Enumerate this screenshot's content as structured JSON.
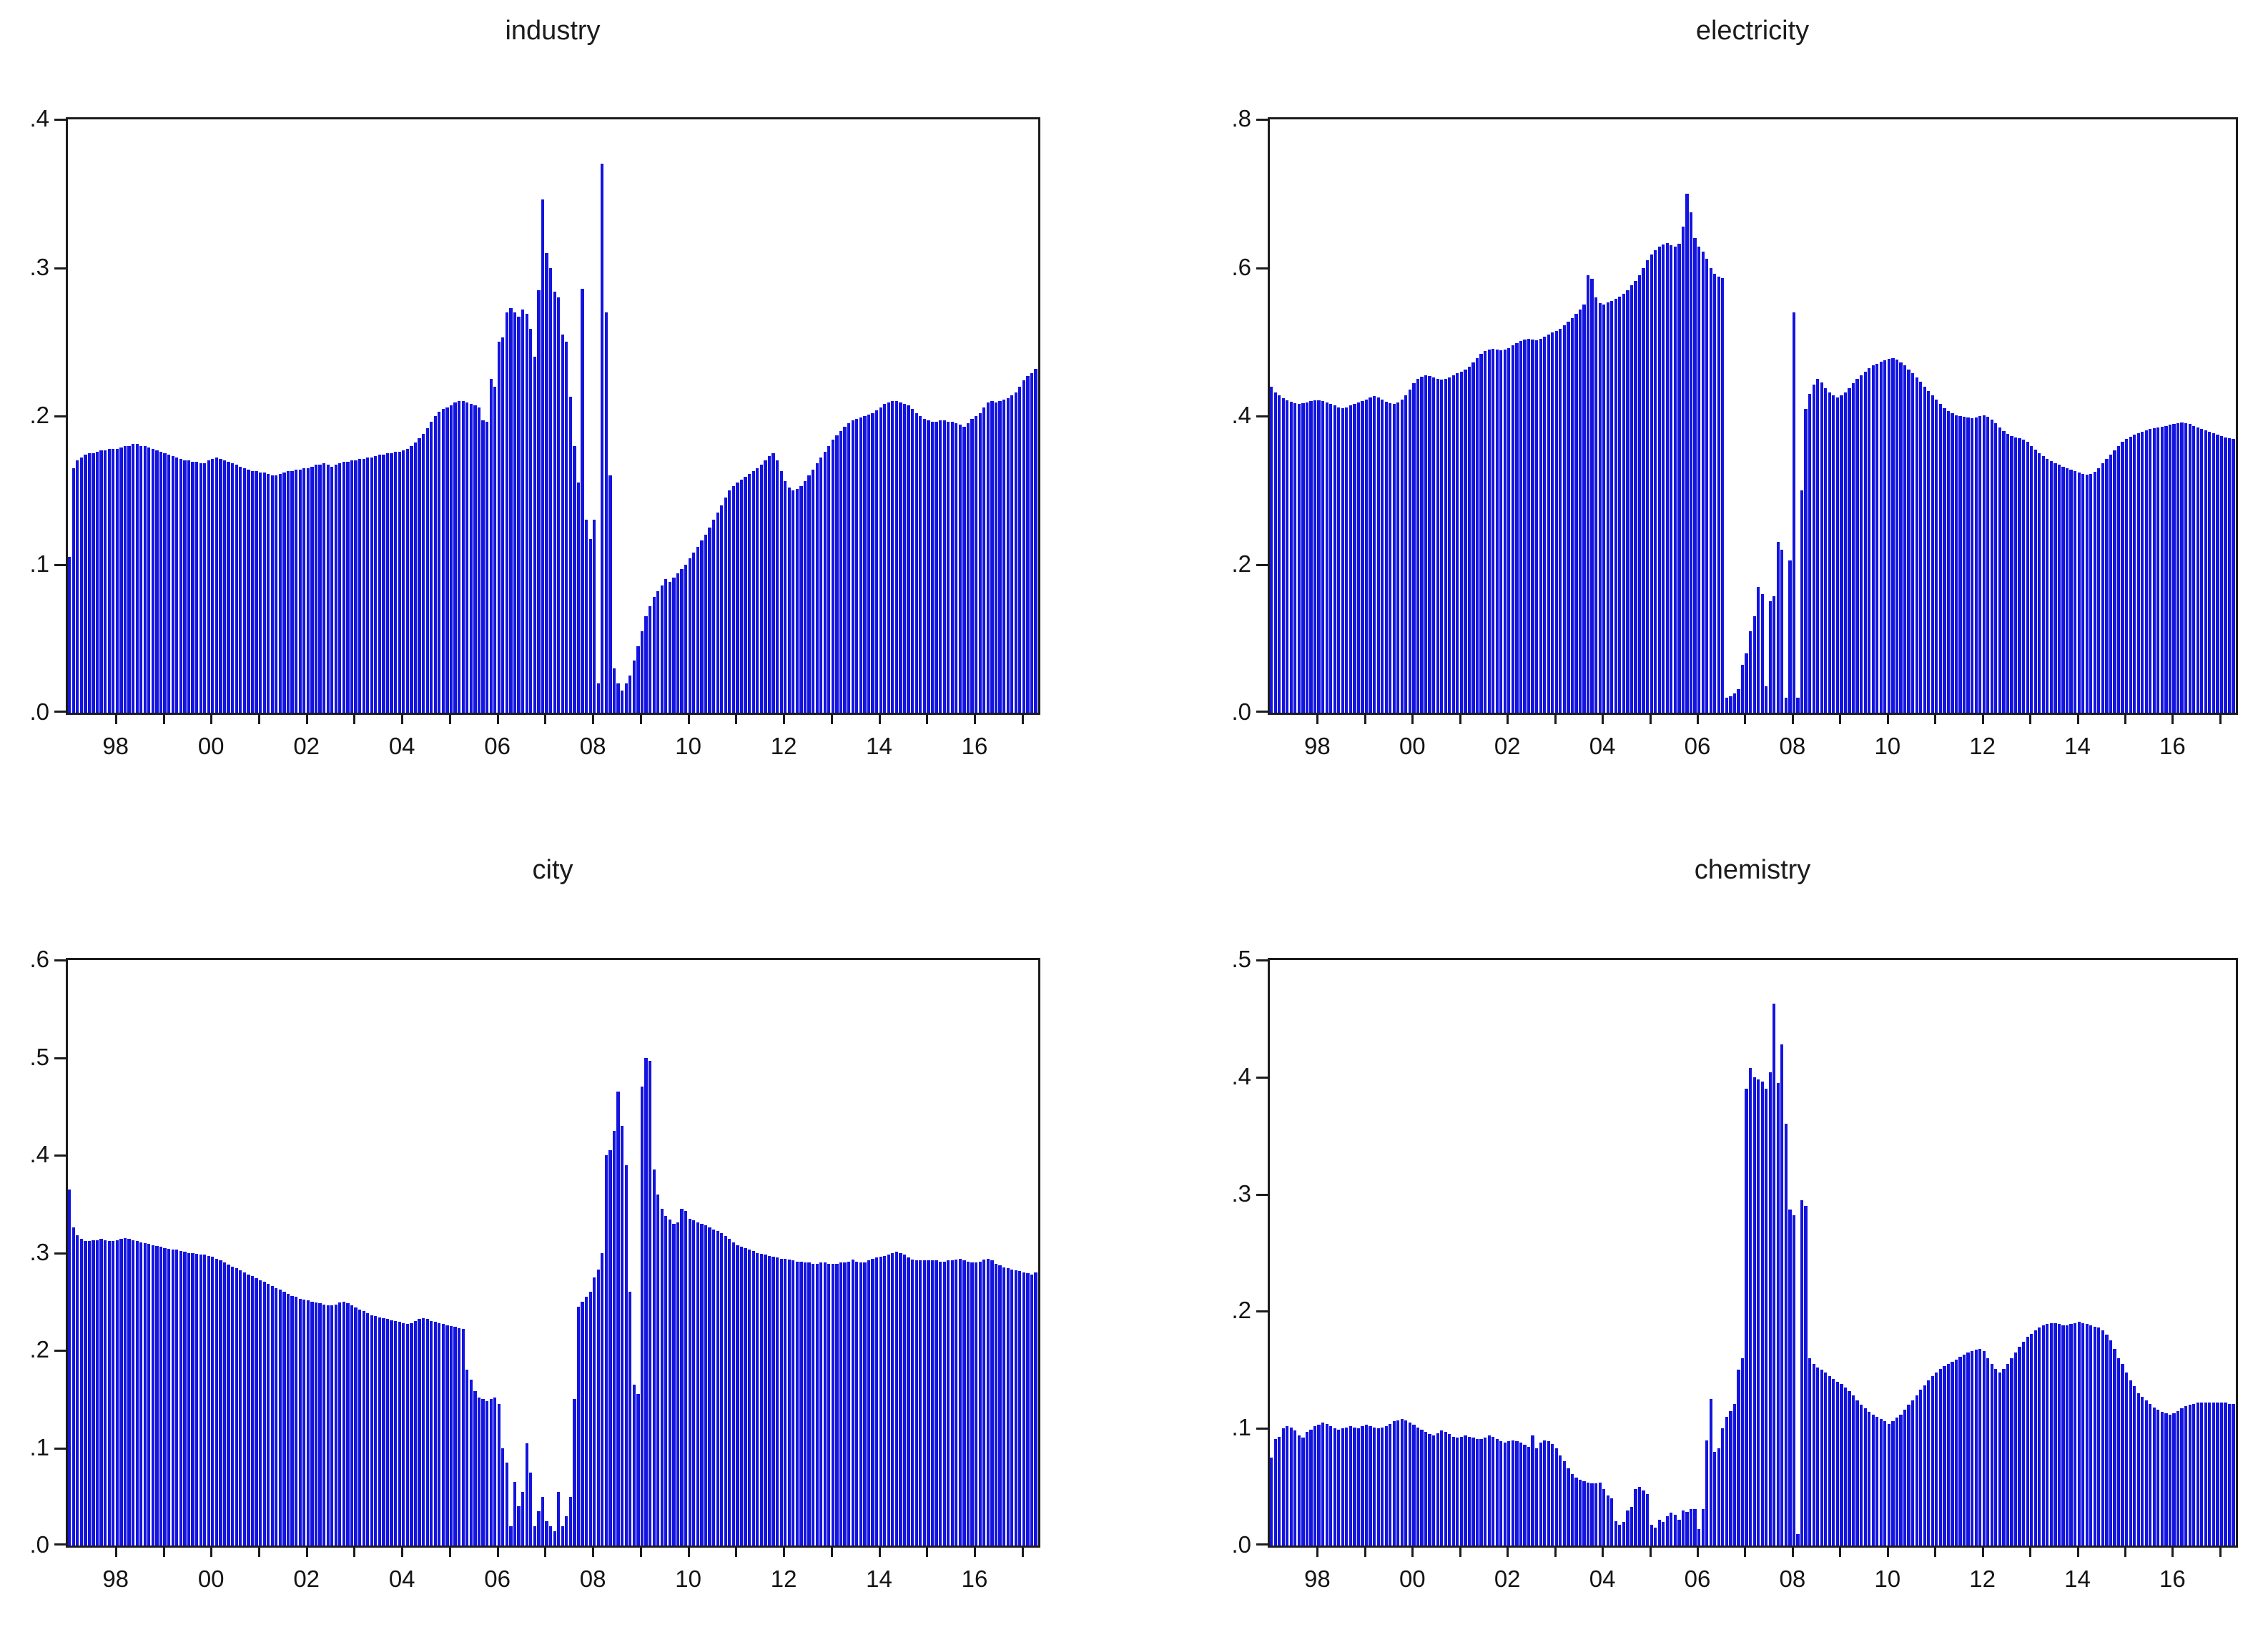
{
  "figure": {
    "background": "#ffffff",
    "bar_color": "#1414e0",
    "axis_color": "#1c1c1c",
    "label_color": "#141414"
  },
  "chart_data": [
    {
      "type": "bar",
      "title": "industry",
      "position": "top-left",
      "frequency": "monthly",
      "x_start": "1997M01",
      "x_end": "2017M04",
      "ylim": [
        0.0,
        0.4
      ],
      "grid": false,
      "y_tick_values": [
        0.4,
        0.3,
        0.2,
        0.1,
        0.0
      ],
      "y_tick_labels": [
        ".4",
        ".3",
        ".2",
        ".1",
        ".0"
      ],
      "x_label_years": [
        1998,
        2000,
        2002,
        2004,
        2006,
        2008,
        2010,
        2012,
        2014,
        2016
      ],
      "x_labels": [
        "98",
        "00",
        "02",
        "04",
        "06",
        "08",
        "10",
        "12",
        "14",
        "16"
      ],
      "values": [
        0.105,
        0.165,
        0.17,
        0.172,
        0.174,
        0.175,
        0.175,
        0.176,
        0.177,
        0.177,
        0.178,
        0.178,
        0.178,
        0.179,
        0.18,
        0.18,
        0.181,
        0.181,
        0.18,
        0.18,
        0.179,
        0.178,
        0.177,
        0.176,
        0.175,
        0.174,
        0.173,
        0.172,
        0.171,
        0.17,
        0.17,
        0.169,
        0.169,
        0.168,
        0.168,
        0.17,
        0.171,
        0.172,
        0.171,
        0.17,
        0.169,
        0.168,
        0.167,
        0.166,
        0.165,
        0.164,
        0.163,
        0.163,
        0.162,
        0.162,
        0.161,
        0.16,
        0.16,
        0.161,
        0.162,
        0.163,
        0.163,
        0.164,
        0.164,
        0.165,
        0.165,
        0.166,
        0.167,
        0.167,
        0.168,
        0.167,
        0.166,
        0.167,
        0.168,
        0.169,
        0.169,
        0.17,
        0.17,
        0.171,
        0.171,
        0.172,
        0.172,
        0.173,
        0.174,
        0.174,
        0.175,
        0.175,
        0.176,
        0.176,
        0.177,
        0.178,
        0.18,
        0.182,
        0.185,
        0.188,
        0.192,
        0.196,
        0.2,
        0.203,
        0.205,
        0.206,
        0.207,
        0.209,
        0.21,
        0.21,
        0.209,
        0.208,
        0.207,
        0.206,
        0.197,
        0.196,
        0.225,
        0.22,
        0.25,
        0.253,
        0.27,
        0.273,
        0.27,
        0.267,
        0.272,
        0.269,
        0.259,
        0.24,
        0.285,
        0.346,
        0.31,
        0.3,
        0.284,
        0.28,
        0.255,
        0.25,
        0.213,
        0.18,
        0.155,
        0.286,
        0.13,
        0.117,
        0.13,
        0.02,
        0.37,
        0.27,
        0.16,
        0.03,
        0.02,
        0.015,
        0.02,
        0.025,
        0.035,
        0.045,
        0.055,
        0.065,
        0.072,
        0.078,
        0.082,
        0.086,
        0.09,
        0.088,
        0.091,
        0.094,
        0.097,
        0.1,
        0.104,
        0.108,
        0.112,
        0.116,
        0.12,
        0.125,
        0.13,
        0.135,
        0.14,
        0.145,
        0.15,
        0.153,
        0.155,
        0.157,
        0.159,
        0.161,
        0.163,
        0.165,
        0.167,
        0.17,
        0.173,
        0.175,
        0.17,
        0.163,
        0.156,
        0.152,
        0.15,
        0.151,
        0.153,
        0.156,
        0.16,
        0.164,
        0.168,
        0.172,
        0.176,
        0.18,
        0.184,
        0.187,
        0.19,
        0.193,
        0.195,
        0.197,
        0.198,
        0.199,
        0.2,
        0.201,
        0.202,
        0.204,
        0.206,
        0.208,
        0.209,
        0.21,
        0.21,
        0.209,
        0.208,
        0.207,
        0.205,
        0.202,
        0.2,
        0.198,
        0.197,
        0.196,
        0.196,
        0.197,
        0.197,
        0.196,
        0.196,
        0.195,
        0.194,
        0.193,
        0.195,
        0.198,
        0.2,
        0.202,
        0.206,
        0.209,
        0.21,
        0.209,
        0.21,
        0.211,
        0.212,
        0.214,
        0.216,
        0.22,
        0.224,
        0.227,
        0.229,
        0.232
      ]
    },
    {
      "type": "bar",
      "title": "electricity",
      "position": "top-right",
      "frequency": "monthly",
      "x_start": "1997M01",
      "x_end": "2017M04",
      "ylim": [
        0.0,
        0.8
      ],
      "grid": false,
      "y_tick_values": [
        0.8,
        0.6,
        0.4,
        0.2,
        0.0
      ],
      "y_tick_labels": [
        ".8",
        ".6",
        ".4",
        ".2",
        ".0"
      ],
      "x_label_years": [
        1998,
        2000,
        2002,
        2004,
        2006,
        2008,
        2010,
        2012,
        2014,
        2016
      ],
      "x_labels": [
        "98",
        "00",
        "02",
        "04",
        "06",
        "08",
        "10",
        "12",
        "14",
        "16"
      ],
      "values": [
        0.44,
        0.432,
        0.428,
        0.424,
        0.421,
        0.419,
        0.417,
        0.416,
        0.417,
        0.418,
        0.42,
        0.421,
        0.421,
        0.42,
        0.418,
        0.416,
        0.414,
        0.412,
        0.411,
        0.412,
        0.414,
        0.416,
        0.418,
        0.42,
        0.422,
        0.425,
        0.427,
        0.425,
        0.422,
        0.419,
        0.417,
        0.416,
        0.418,
        0.422,
        0.428,
        0.436,
        0.444,
        0.45,
        0.453,
        0.455,
        0.454,
        0.452,
        0.45,
        0.449,
        0.45,
        0.452,
        0.455,
        0.458,
        0.46,
        0.463,
        0.467,
        0.472,
        0.478,
        0.484,
        0.488,
        0.49,
        0.491,
        0.49,
        0.489,
        0.49,
        0.492,
        0.495,
        0.498,
        0.501,
        0.503,
        0.504,
        0.503,
        0.502,
        0.504,
        0.507,
        0.51,
        0.513,
        0.515,
        0.518,
        0.522,
        0.527,
        0.532,
        0.538,
        0.544,
        0.55,
        0.59,
        0.585,
        0.56,
        0.552,
        0.55,
        0.553,
        0.555,
        0.558,
        0.561,
        0.565,
        0.57,
        0.576,
        0.582,
        0.59,
        0.6,
        0.61,
        0.618,
        0.624,
        0.628,
        0.631,
        0.633,
        0.63,
        0.628,
        0.632,
        0.655,
        0.7,
        0.675,
        0.64,
        0.628,
        0.622,
        0.612,
        0.6,
        0.592,
        0.588,
        0.586,
        0.02,
        0.022,
        0.026,
        0.032,
        0.065,
        0.08,
        0.11,
        0.13,
        0.17,
        0.16,
        0.036,
        0.15,
        0.157,
        0.23,
        0.22,
        0.02,
        0.205,
        0.54,
        0.02,
        0.3,
        0.41,
        0.43,
        0.442,
        0.45,
        0.445,
        0.438,
        0.432,
        0.428,
        0.425,
        0.428,
        0.432,
        0.438,
        0.444,
        0.45,
        0.455,
        0.46,
        0.465,
        0.468,
        0.47,
        0.473,
        0.475,
        0.477,
        0.478,
        0.476,
        0.472,
        0.468,
        0.463,
        0.458,
        0.452,
        0.446,
        0.44,
        0.434,
        0.428,
        0.422,
        0.416,
        0.411,
        0.407,
        0.404,
        0.401,
        0.4,
        0.399,
        0.398,
        0.397,
        0.398,
        0.4,
        0.401,
        0.399,
        0.395,
        0.39,
        0.385,
        0.38,
        0.376,
        0.373,
        0.371,
        0.37,
        0.368,
        0.365,
        0.36,
        0.355,
        0.35,
        0.346,
        0.342,
        0.339,
        0.336,
        0.334,
        0.332,
        0.33,
        0.328,
        0.326,
        0.324,
        0.322,
        0.321,
        0.322,
        0.325,
        0.33,
        0.336,
        0.342,
        0.348,
        0.354,
        0.36,
        0.365,
        0.369,
        0.372,
        0.375,
        0.377,
        0.379,
        0.381,
        0.383,
        0.384,
        0.385,
        0.386,
        0.387,
        0.388,
        0.389,
        0.39,
        0.391,
        0.39,
        0.389,
        0.387,
        0.385,
        0.383,
        0.381,
        0.379,
        0.377,
        0.375,
        0.373,
        0.371,
        0.37,
        0.369
      ]
    },
    {
      "type": "bar",
      "title": "city",
      "position": "bottom-left",
      "frequency": "monthly",
      "x_start": "1997M01",
      "x_end": "2017M04",
      "ylim": [
        0.0,
        0.6
      ],
      "grid": false,
      "y_tick_values": [
        0.6,
        0.5,
        0.4,
        0.3,
        0.2,
        0.1,
        0.0
      ],
      "y_tick_labels": [
        ".6",
        ".5",
        ".4",
        ".3",
        ".2",
        ".1",
        ".0"
      ],
      "x_label_years": [
        1998,
        2000,
        2002,
        2004,
        2006,
        2008,
        2010,
        2012,
        2014,
        2016
      ],
      "x_labels": [
        "98",
        "00",
        "02",
        "04",
        "06",
        "08",
        "10",
        "12",
        "14",
        "16"
      ],
      "values": [
        0.365,
        0.326,
        0.318,
        0.314,
        0.312,
        0.312,
        0.313,
        0.313,
        0.314,
        0.313,
        0.312,
        0.312,
        0.313,
        0.314,
        0.315,
        0.314,
        0.313,
        0.312,
        0.311,
        0.31,
        0.309,
        0.308,
        0.307,
        0.306,
        0.305,
        0.304,
        0.303,
        0.303,
        0.302,
        0.301,
        0.3,
        0.3,
        0.299,
        0.298,
        0.298,
        0.297,
        0.296,
        0.294,
        0.292,
        0.29,
        0.288,
        0.286,
        0.284,
        0.282,
        0.28,
        0.278,
        0.276,
        0.274,
        0.272,
        0.27,
        0.268,
        0.266,
        0.264,
        0.262,
        0.26,
        0.258,
        0.256,
        0.255,
        0.253,
        0.252,
        0.251,
        0.25,
        0.249,
        0.248,
        0.247,
        0.246,
        0.246,
        0.247,
        0.249,
        0.25,
        0.248,
        0.246,
        0.244,
        0.242,
        0.24,
        0.238,
        0.236,
        0.235,
        0.234,
        0.233,
        0.232,
        0.231,
        0.23,
        0.229,
        0.228,
        0.227,
        0.228,
        0.23,
        0.232,
        0.233,
        0.232,
        0.23,
        0.229,
        0.228,
        0.227,
        0.226,
        0.225,
        0.224,
        0.223,
        0.222,
        0.18,
        0.17,
        0.158,
        0.152,
        0.15,
        0.148,
        0.15,
        0.152,
        0.145,
        0.1,
        0.085,
        0.02,
        0.065,
        0.04,
        0.055,
        0.105,
        0.075,
        0.02,
        0.035,
        0.05,
        0.025,
        0.02,
        0.015,
        0.055,
        0.02,
        0.03,
        0.05,
        0.15,
        0.245,
        0.25,
        0.255,
        0.26,
        0.275,
        0.283,
        0.3,
        0.4,
        0.405,
        0.425,
        0.465,
        0.43,
        0.39,
        0.26,
        0.165,
        0.155,
        0.47,
        0.5,
        0.497,
        0.385,
        0.36,
        0.345,
        0.338,
        0.334,
        0.33,
        0.331,
        0.345,
        0.343,
        0.335,
        0.333,
        0.331,
        0.33,
        0.328,
        0.326,
        0.324,
        0.322,
        0.32,
        0.317,
        0.314,
        0.311,
        0.308,
        0.306,
        0.305,
        0.303,
        0.302,
        0.3,
        0.299,
        0.298,
        0.297,
        0.296,
        0.295,
        0.294,
        0.294,
        0.293,
        0.292,
        0.291,
        0.291,
        0.29,
        0.29,
        0.289,
        0.289,
        0.29,
        0.29,
        0.289,
        0.289,
        0.289,
        0.29,
        0.29,
        0.291,
        0.293,
        0.291,
        0.29,
        0.29,
        0.292,
        0.294,
        0.295,
        0.296,
        0.297,
        0.298,
        0.3,
        0.301,
        0.3,
        0.298,
        0.295,
        0.293,
        0.292,
        0.292,
        0.292,
        0.292,
        0.292,
        0.292,
        0.291,
        0.291,
        0.292,
        0.292,
        0.293,
        0.294,
        0.292,
        0.291,
        0.29,
        0.29,
        0.291,
        0.293,
        0.294,
        0.292,
        0.289,
        0.287,
        0.285,
        0.284,
        0.283,
        0.282,
        0.281,
        0.28,
        0.279,
        0.278,
        0.28
      ]
    },
    {
      "type": "bar",
      "title": "chemistry",
      "position": "bottom-right",
      "frequency": "monthly",
      "x_start": "1997M01",
      "x_end": "2017M04",
      "ylim": [
        0.0,
        0.5
      ],
      "grid": false,
      "y_tick_values": [
        0.5,
        0.4,
        0.3,
        0.2,
        0.1,
        0.0
      ],
      "y_tick_labels": [
        ".5",
        ".4",
        ".3",
        ".2",
        ".1",
        ".0"
      ],
      "x_label_years": [
        1998,
        2000,
        2002,
        2004,
        2006,
        2008,
        2010,
        2012,
        2014,
        2016
      ],
      "x_labels": [
        "98",
        "00",
        "02",
        "04",
        "06",
        "08",
        "10",
        "12",
        "14",
        "16"
      ],
      "values": [
        0.075,
        0.091,
        0.093,
        0.1,
        0.102,
        0.101,
        0.098,
        0.094,
        0.092,
        0.097,
        0.099,
        0.102,
        0.103,
        0.105,
        0.104,
        0.102,
        0.1,
        0.099,
        0.1,
        0.101,
        0.102,
        0.101,
        0.1,
        0.102,
        0.103,
        0.102,
        0.101,
        0.1,
        0.101,
        0.102,
        0.104,
        0.106,
        0.107,
        0.108,
        0.107,
        0.105,
        0.103,
        0.101,
        0.099,
        0.097,
        0.095,
        0.094,
        0.096,
        0.098,
        0.097,
        0.095,
        0.093,
        0.092,
        0.093,
        0.094,
        0.093,
        0.092,
        0.091,
        0.091,
        0.092,
        0.094,
        0.093,
        0.091,
        0.089,
        0.088,
        0.089,
        0.09,
        0.089,
        0.088,
        0.086,
        0.084,
        0.094,
        0.083,
        0.088,
        0.09,
        0.089,
        0.087,
        0.083,
        0.077,
        0.072,
        0.066,
        0.061,
        0.058,
        0.056,
        0.055,
        0.054,
        0.053,
        0.053,
        0.054,
        0.048,
        0.043,
        0.04,
        0.021,
        0.018,
        0.02,
        0.03,
        0.033,
        0.048,
        0.05,
        0.047,
        0.044,
        0.018,
        0.015,
        0.022,
        0.02,
        0.025,
        0.028,
        0.026,
        0.022,
        0.03,
        0.029,
        0.031,
        0.031,
        0.014,
        0.031,
        0.09,
        0.125,
        0.08,
        0.083,
        0.1,
        0.11,
        0.115,
        0.121,
        0.15,
        0.16,
        0.39,
        0.408,
        0.4,
        0.398,
        0.396,
        0.39,
        0.404,
        0.463,
        0.395,
        0.428,
        0.36,
        0.287,
        0.282,
        0.01,
        0.295,
        0.29,
        0.16,
        0.155,
        0.152,
        0.15,
        0.148,
        0.145,
        0.142,
        0.14,
        0.138,
        0.135,
        0.132,
        0.128,
        0.124,
        0.12,
        0.117,
        0.114,
        0.112,
        0.11,
        0.108,
        0.106,
        0.104,
        0.106,
        0.109,
        0.112,
        0.116,
        0.12,
        0.124,
        0.128,
        0.133,
        0.137,
        0.141,
        0.145,
        0.148,
        0.151,
        0.153,
        0.155,
        0.157,
        0.159,
        0.161,
        0.163,
        0.165,
        0.166,
        0.167,
        0.168,
        0.166,
        0.16,
        0.155,
        0.151,
        0.148,
        0.151,
        0.155,
        0.16,
        0.165,
        0.17,
        0.174,
        0.178,
        0.181,
        0.184,
        0.186,
        0.188,
        0.189,
        0.19,
        0.19,
        0.189,
        0.188,
        0.188,
        0.189,
        0.19,
        0.191,
        0.19,
        0.189,
        0.188,
        0.187,
        0.186,
        0.184,
        0.18,
        0.175,
        0.168,
        0.16,
        0.155,
        0.148,
        0.141,
        0.136,
        0.13,
        0.127,
        0.124,
        0.121,
        0.118,
        0.116,
        0.114,
        0.113,
        0.112,
        0.113,
        0.115,
        0.117,
        0.119,
        0.12,
        0.121,
        0.122,
        0.122,
        0.122,
        0.122,
        0.122,
        0.122,
        0.122,
        0.122,
        0.121,
        0.121
      ]
    }
  ]
}
